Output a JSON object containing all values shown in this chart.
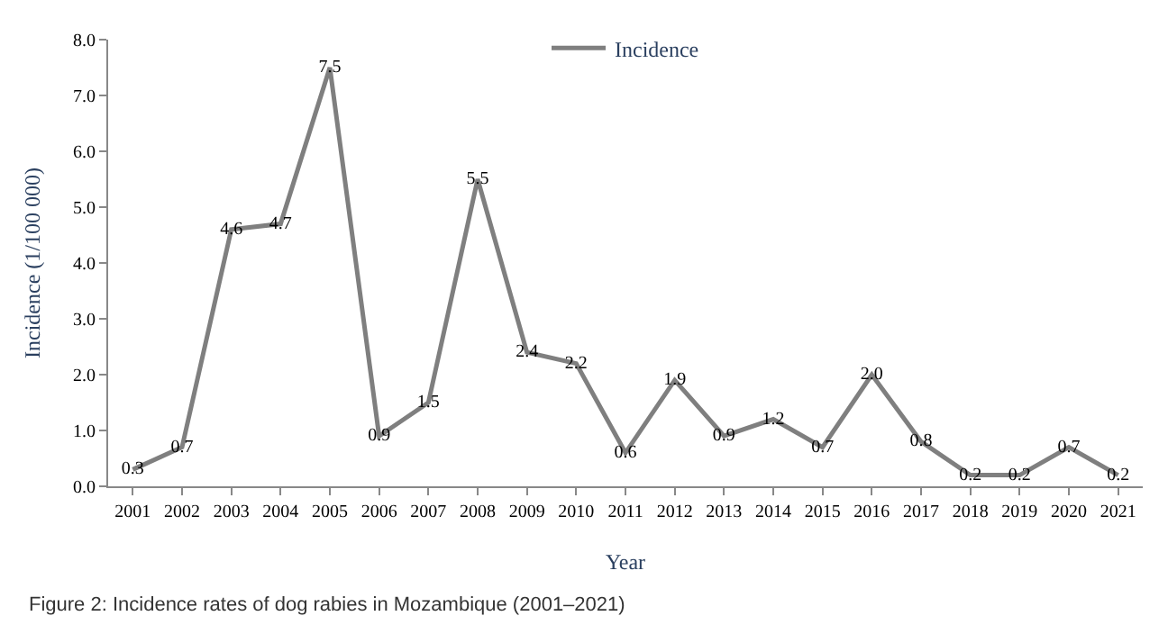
{
  "chart_data": {
    "type": "line",
    "categories": [
      "2001",
      "2002",
      "2003",
      "2004",
      "2005",
      "2006",
      "2007",
      "2008",
      "2009",
      "2010",
      "2011",
      "2012",
      "2013",
      "2014",
      "2015",
      "2016",
      "2017",
      "2018",
      "2019",
      "2020",
      "2021"
    ],
    "series": [
      {
        "name": "Incidence",
        "color": "#7f7f7f",
        "values": [
          0.3,
          0.7,
          4.6,
          4.7,
          7.5,
          0.9,
          1.5,
          5.5,
          2.4,
          2.2,
          0.6,
          1.9,
          0.9,
          1.2,
          0.7,
          2.0,
          0.8,
          0.2,
          0.2,
          0.7,
          0.2
        ],
        "value_labels": [
          "0.3",
          "0.7",
          "4.6",
          "4.7",
          "7.5",
          "0.9",
          "1.5",
          "5.5",
          "2.4",
          "2.2",
          "0.6",
          "1.9",
          "0.9",
          "1.2",
          "0.7",
          "2.0",
          "0.8",
          "0.2",
          "0.2",
          "0.7",
          "0.2"
        ]
      }
    ],
    "xlabel": "Year",
    "ylabel": "Incidence (1/100 000)",
    "ylim": [
      0,
      8
    ],
    "yticks": [
      {
        "value": 0,
        "label": "0.0"
      },
      {
        "value": 1,
        "label": "1.0"
      },
      {
        "value": 2,
        "label": "2.0"
      },
      {
        "value": 3,
        "label": "3.0"
      },
      {
        "value": 4,
        "label": "4.0"
      },
      {
        "value": 5,
        "label": "5.0"
      },
      {
        "value": 6,
        "label": "6.0"
      },
      {
        "value": 7,
        "label": "7.0"
      },
      {
        "value": 8,
        "label": "8.0"
      }
    ],
    "annotations": [
      "Figure 2: Incidence rates of dog rabies in Mozambique (2001–2021)"
    ],
    "legend": "top",
    "marker": "none",
    "line_style": "solid"
  }
}
